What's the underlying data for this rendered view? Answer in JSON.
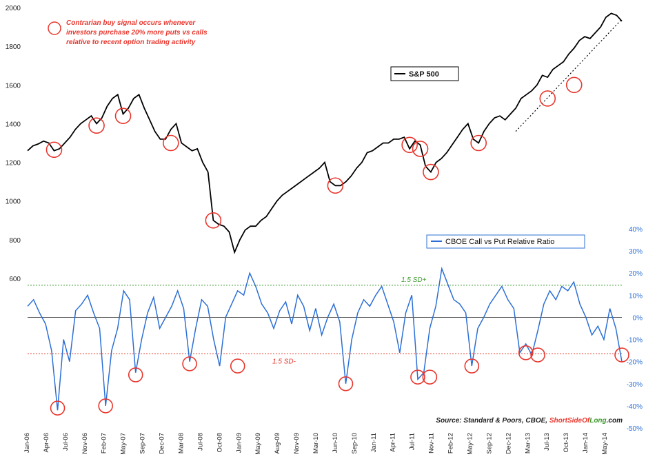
{
  "chart_data": {
    "type": "line",
    "title": "",
    "annotation_note": [
      "Contrarian buy signal occurs whenever",
      "investors purchase 20% more puts vs calls",
      "relative to recent option trading activity"
    ],
    "x_ticks": [
      "Jan-06",
      "Apr-06",
      "Jul-06",
      "Nov-06",
      "Feb-07",
      "May-07",
      "Sep-07",
      "Dec-07",
      "Mar-08",
      "Jul-08",
      "Oct-08",
      "Jan-09",
      "May-09",
      "Aug-09",
      "Nov-09",
      "Mar-10",
      "Jun-10",
      "Sep-10",
      "Jan-11",
      "Apr-11",
      "Jul-11",
      "Nov-11",
      "Feb-12",
      "May-12",
      "Sep-12",
      "Dec-12",
      "Mar-13",
      "Jul-13",
      "Oct-13",
      "Jan-14",
      "May-14"
    ],
    "left_axis": {
      "ylim": [
        600,
        2000
      ],
      "ticks": [
        600,
        800,
        1000,
        1200,
        1400,
        1600,
        1800,
        2000
      ]
    },
    "right_axis": {
      "ylim": [
        -50,
        40
      ],
      "ticks": [
        "40%",
        "30%",
        "20%",
        "10%",
        "0%",
        "-10%",
        "-20%",
        "-30%",
        "-40%",
        "-50%"
      ]
    },
    "colors": {
      "sp500": "#000000",
      "ratio": "#2b6fd6",
      "signal": "#e8362d",
      "upper_sd": "#3c9a2c",
      "lower_sd": "#e8362d"
    },
    "series": [
      {
        "name": "S&P 500",
        "axis": "left",
        "points": [
          [
            0,
            1260
          ],
          [
            1,
            1285
          ],
          [
            2,
            1295
          ],
          [
            3,
            1310
          ],
          [
            4,
            1300
          ],
          [
            5,
            1260
          ],
          [
            6,
            1270
          ],
          [
            7,
            1300
          ],
          [
            8,
            1330
          ],
          [
            9,
            1370
          ],
          [
            10,
            1400
          ],
          [
            11,
            1420
          ],
          [
            12,
            1440
          ],
          [
            13,
            1400
          ],
          [
            14,
            1430
          ],
          [
            15,
            1490
          ],
          [
            16,
            1530
          ],
          [
            17,
            1550
          ],
          [
            18,
            1450
          ],
          [
            19,
            1480
          ],
          [
            20,
            1530
          ],
          [
            21,
            1550
          ],
          [
            22,
            1480
          ],
          [
            23,
            1420
          ],
          [
            24,
            1360
          ],
          [
            25,
            1320
          ],
          [
            26,
            1320
          ],
          [
            27,
            1370
          ],
          [
            28,
            1400
          ],
          [
            29,
            1300
          ],
          [
            30,
            1280
          ],
          [
            31,
            1260
          ],
          [
            32,
            1270
          ],
          [
            33,
            1200
          ],
          [
            34,
            1150
          ],
          [
            35,
            900
          ],
          [
            36,
            880
          ],
          [
            37,
            870
          ],
          [
            38,
            840
          ],
          [
            39,
            735
          ],
          [
            40,
            800
          ],
          [
            41,
            850
          ],
          [
            42,
            870
          ],
          [
            43,
            870
          ],
          [
            44,
            900
          ],
          [
            45,
            920
          ],
          [
            46,
            960
          ],
          [
            47,
            1000
          ],
          [
            48,
            1030
          ],
          [
            49,
            1050
          ],
          [
            50,
            1070
          ],
          [
            51,
            1090
          ],
          [
            52,
            1110
          ],
          [
            53,
            1130
          ],
          [
            54,
            1150
          ],
          [
            55,
            1170
          ],
          [
            56,
            1200
          ],
          [
            57,
            1100
          ],
          [
            58,
            1080
          ],
          [
            59,
            1080
          ],
          [
            60,
            1100
          ],
          [
            61,
            1130
          ],
          [
            62,
            1170
          ],
          [
            63,
            1200
          ],
          [
            64,
            1250
          ],
          [
            65,
            1260
          ],
          [
            66,
            1280
          ],
          [
            67,
            1300
          ],
          [
            68,
            1300
          ],
          [
            69,
            1320
          ],
          [
            70,
            1320
          ],
          [
            71,
            1330
          ],
          [
            72,
            1270
          ],
          [
            73,
            1310
          ],
          [
            74,
            1290
          ],
          [
            75,
            1180
          ],
          [
            76,
            1150
          ],
          [
            77,
            1200
          ],
          [
            78,
            1220
          ],
          [
            79,
            1250
          ],
          [
            80,
            1290
          ],
          [
            81,
            1330
          ],
          [
            82,
            1370
          ],
          [
            83,
            1400
          ],
          [
            84,
            1320
          ],
          [
            85,
            1300
          ],
          [
            86,
            1360
          ],
          [
            87,
            1400
          ],
          [
            88,
            1430
          ],
          [
            89,
            1440
          ],
          [
            90,
            1420
          ],
          [
            91,
            1450
          ],
          [
            92,
            1480
          ],
          [
            93,
            1530
          ],
          [
            94,
            1550
          ],
          [
            95,
            1570
          ],
          [
            96,
            1600
          ],
          [
            97,
            1650
          ],
          [
            98,
            1640
          ],
          [
            99,
            1680
          ],
          [
            100,
            1700
          ],
          [
            101,
            1720
          ],
          [
            102,
            1760
          ],
          [
            103,
            1790
          ],
          [
            104,
            1830
          ],
          [
            105,
            1850
          ],
          [
            106,
            1840
          ],
          [
            107,
            1870
          ],
          [
            108,
            1900
          ],
          [
            109,
            1950
          ],
          [
            110,
            1970
          ],
          [
            111,
            1960
          ],
          [
            112,
            1930
          ]
        ]
      },
      {
        "name": "CBOE Call vs Put Relative Ratio",
        "axis": "right",
        "points": [
          [
            0,
            5
          ],
          [
            1,
            8
          ],
          [
            2,
            2
          ],
          [
            3,
            -3
          ],
          [
            4,
            -15
          ],
          [
            5,
            -42
          ],
          [
            6,
            -10
          ],
          [
            7,
            -20
          ],
          [
            8,
            3
          ],
          [
            9,
            6
          ],
          [
            10,
            10
          ],
          [
            11,
            2
          ],
          [
            12,
            -5
          ],
          [
            13,
            -40
          ],
          [
            14,
            -15
          ],
          [
            15,
            -5
          ],
          [
            16,
            12
          ],
          [
            17,
            8
          ],
          [
            18,
            -25
          ],
          [
            19,
            -10
          ],
          [
            20,
            2
          ],
          [
            21,
            9
          ],
          [
            22,
            -5
          ],
          [
            23,
            0
          ],
          [
            24,
            5
          ],
          [
            25,
            12
          ],
          [
            26,
            4
          ],
          [
            27,
            -20
          ],
          [
            28,
            -5
          ],
          [
            29,
            8
          ],
          [
            30,
            5
          ],
          [
            31,
            -10
          ],
          [
            32,
            -22
          ],
          [
            33,
            0
          ],
          [
            34,
            6
          ],
          [
            35,
            12
          ],
          [
            36,
            10
          ],
          [
            37,
            20
          ],
          [
            38,
            14
          ],
          [
            39,
            6
          ],
          [
            40,
            2
          ],
          [
            41,
            -5
          ],
          [
            42,
            3
          ],
          [
            43,
            7
          ],
          [
            44,
            -3
          ],
          [
            45,
            10
          ],
          [
            46,
            5
          ],
          [
            47,
            -6
          ],
          [
            48,
            4
          ],
          [
            49,
            -8
          ],
          [
            50,
            0
          ],
          [
            51,
            6
          ],
          [
            52,
            -2
          ],
          [
            53,
            -30
          ],
          [
            54,
            -10
          ],
          [
            55,
            2
          ],
          [
            56,
            8
          ],
          [
            57,
            5
          ],
          [
            58,
            10
          ],
          [
            59,
            14
          ],
          [
            60,
            6
          ],
          [
            61,
            -2
          ],
          [
            62,
            -16
          ],
          [
            63,
            2
          ],
          [
            64,
            10
          ],
          [
            65,
            -28
          ],
          [
            66,
            -25
          ],
          [
            67,
            -5
          ],
          [
            68,
            5
          ],
          [
            69,
            22
          ],
          [
            70,
            15
          ],
          [
            71,
            8
          ],
          [
            72,
            6
          ],
          [
            73,
            2
          ],
          [
            74,
            -22
          ],
          [
            75,
            -5
          ],
          [
            76,
            0
          ],
          [
            77,
            6
          ],
          [
            78,
            10
          ],
          [
            79,
            14
          ],
          [
            80,
            8
          ],
          [
            81,
            4
          ],
          [
            82,
            -16
          ],
          [
            83,
            -12
          ],
          [
            84,
            -17
          ],
          [
            85,
            -6
          ],
          [
            86,
            6
          ],
          [
            87,
            12
          ],
          [
            88,
            8
          ],
          [
            89,
            14
          ],
          [
            90,
            12
          ],
          [
            91,
            16
          ],
          [
            92,
            6
          ],
          [
            93,
            0
          ],
          [
            94,
            -8
          ],
          [
            95,
            -4
          ],
          [
            96,
            -10
          ],
          [
            97,
            4
          ],
          [
            98,
            -5
          ],
          [
            99,
            -20
          ]
        ]
      }
    ],
    "thresholds": [
      {
        "label": "1.5 SD+",
        "value": 14.5
      },
      {
        "label": "1.5 SD-",
        "value": -16.5
      }
    ],
    "signals_sp500": [
      [
        5,
        1265
      ],
      [
        13,
        1390
      ],
      [
        18,
        1440
      ],
      [
        27,
        1300
      ],
      [
        35,
        900
      ],
      [
        58,
        1080
      ],
      [
        72,
        1290
      ],
      [
        74,
        1270
      ],
      [
        76,
        1150
      ],
      [
        85,
        1300
      ],
      [
        98,
        1530
      ],
      [
        103,
        1600
      ]
    ],
    "signals_ratio": [
      [
        5,
        -41
      ],
      [
        13,
        -40
      ],
      [
        18,
        -26
      ],
      [
        27,
        -21
      ],
      [
        35,
        -22
      ],
      [
        53,
        -30
      ],
      [
        65,
        -27
      ],
      [
        67,
        -27
      ],
      [
        74,
        -22
      ],
      [
        83,
        -16
      ],
      [
        85,
        -17
      ],
      [
        99,
        -17
      ]
    ],
    "legend": [
      {
        "label": "S&P 500"
      },
      {
        "label": "CBOE Call vs Put Relative Ratio"
      }
    ],
    "source": {
      "prefix": "Source: Standard & Poors, CBOE, ",
      "brand_a": "ShortSideOf",
      "brand_b": "Long",
      "suffix": ".com"
    }
  }
}
